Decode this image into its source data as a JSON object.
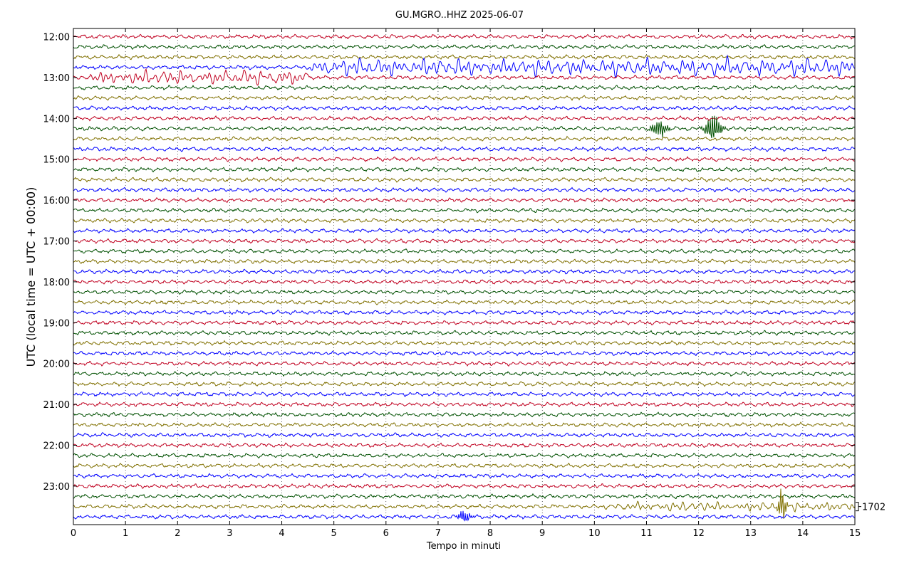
{
  "chart_data": {
    "type": "line",
    "title": "GU.MGRO..HHZ 2025-06-07",
    "xlabel": "Tempo in minuti",
    "ylabel": "UTC (local time = UTC + 00:00)",
    "xlim": [
      0,
      15
    ],
    "x_ticks": [
      "0",
      "1",
      "2",
      "3",
      "4",
      "5",
      "6",
      "7",
      "8",
      "9",
      "10",
      "11",
      "12",
      "13",
      "14",
      "15"
    ],
    "y_ticks": [
      "12:00",
      "13:00",
      "14:00",
      "15:00",
      "16:00",
      "17:00",
      "18:00",
      "19:00",
      "20:00",
      "21:00",
      "22:00",
      "23:00"
    ],
    "scale_label": "1702",
    "grid": true,
    "trace_colors": [
      "#c00020",
      "#005000",
      "#807000",
      "#0000ff"
    ],
    "trace_count": 48,
    "events": [
      {
        "trace": 3,
        "start": 4.3,
        "end": 15,
        "amplitude": 11,
        "kind": "wave"
      },
      {
        "trace": 4,
        "start": 0,
        "end": 4.5,
        "amplitude": 9,
        "kind": "wave"
      },
      {
        "trace": 9,
        "start": 10.9,
        "end": 11.5,
        "amplitude": 14,
        "kind": "burst",
        "peak": 11.25
      },
      {
        "trace": 9,
        "start": 12.0,
        "end": 12.6,
        "amplitude": 22,
        "kind": "burst",
        "peak": 12.28
      },
      {
        "trace": 46,
        "start": 10.1,
        "end": 15,
        "amplitude": 6,
        "kind": "wave"
      },
      {
        "trace": 46,
        "start": 13.5,
        "end": 13.8,
        "amplitude": 24,
        "kind": "burst",
        "peak": 13.6
      },
      {
        "trace": 47,
        "start": 7.3,
        "end": 7.8,
        "amplitude": 9,
        "kind": "burst",
        "peak": 7.5
      }
    ]
  }
}
